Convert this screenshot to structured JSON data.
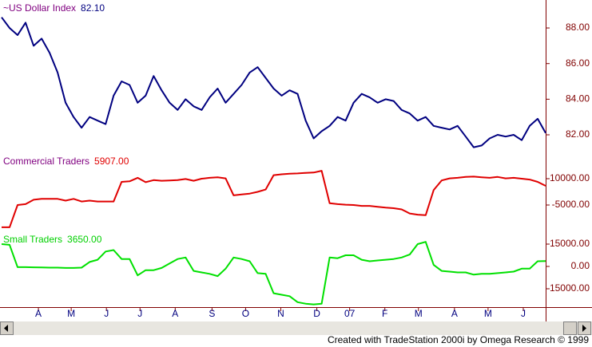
{
  "chart_data": [
    {
      "type": "line",
      "title": "~US Dollar Index",
      "value_label": "82.10",
      "title_color": "#800080",
      "value_color": "#000080",
      "x": [
        0,
        1,
        2,
        3,
        4,
        5,
        6,
        7,
        8,
        9,
        10,
        11,
        12,
        13,
        14,
        15,
        16,
        17,
        18,
        19,
        20,
        21,
        22,
        23,
        24,
        25,
        26,
        27,
        28,
        29,
        30,
        31,
        32,
        33,
        34,
        35,
        36,
        37,
        38,
        39,
        40,
        41,
        42,
        43,
        44,
        45,
        46,
        47,
        48,
        49,
        50,
        51,
        52,
        53,
        54,
        55,
        56,
        57,
        58,
        59,
        60,
        61,
        62,
        63,
        64,
        65,
        66,
        67,
        68
      ],
      "xlim": [
        0,
        68
      ],
      "ylim": [
        81.06,
        89.57
      ],
      "yticks": [
        {
          "value": 82,
          "label": "82.00"
        },
        {
          "value": 84,
          "label": "84.00"
        },
        {
          "value": 86,
          "label": "86.00"
        },
        {
          "value": 88,
          "label": "88.00"
        }
      ],
      "series": [
        {
          "name": "~US Dollar Index",
          "color": "#000080",
          "values": [
            88.6,
            88.0,
            87.6,
            88.3,
            87.0,
            87.4,
            86.6,
            85.5,
            83.8,
            83.0,
            82.4,
            83.0,
            82.8,
            82.6,
            84.2,
            85.0,
            84.8,
            83.8,
            84.2,
            85.3,
            84.5,
            83.8,
            83.4,
            84.0,
            83.6,
            83.4,
            84.1,
            84.6,
            83.8,
            84.3,
            84.8,
            85.5,
            85.8,
            85.2,
            84.6,
            84.2,
            84.5,
            84.3,
            82.8,
            81.8,
            82.2,
            82.5,
            83.0,
            82.8,
            83.8,
            84.3,
            84.1,
            83.8,
            84.0,
            83.9,
            83.4,
            83.2,
            82.8,
            83.0,
            82.5,
            82.4,
            82.3,
            82.5,
            81.9,
            81.3,
            81.4,
            81.8,
            82.0,
            81.9,
            82.0,
            81.7,
            82.5,
            82.9,
            82.1
          ]
        }
      ]
    },
    {
      "type": "line",
      "title": "Commercial Traders",
      "value_label": "5907.00",
      "title_color": "#800080",
      "value_color": "#e00000",
      "x": [
        0,
        1,
        2,
        3,
        4,
        5,
        6,
        7,
        8,
        9,
        10,
        11,
        12,
        13,
        14,
        15,
        16,
        17,
        18,
        19,
        20,
        21,
        22,
        23,
        24,
        25,
        26,
        27,
        28,
        29,
        30,
        31,
        32,
        33,
        34,
        35,
        36,
        37,
        38,
        39,
        40,
        41,
        42,
        43,
        44,
        45,
        46,
        47,
        48,
        49,
        50,
        51,
        52,
        53,
        54,
        55,
        56,
        57,
        58,
        59,
        60,
        61,
        62,
        63,
        64,
        65,
        66,
        67,
        68
      ],
      "xlim": [
        0,
        68
      ],
      "ylim": [
        -19090,
        24545
      ],
      "yticks": [
        {
          "value": -5000,
          "label": "-5000.00"
        },
        {
          "value": 10000,
          "label": "10000.00"
        }
      ],
      "series": [
        {
          "name": "Commercial Traders",
          "color": "#e00000",
          "values": [
            -17700,
            -17700,
            -5000,
            -4500,
            -2000,
            -1500,
            -1500,
            -1500,
            -2500,
            -1500,
            -3000,
            -2500,
            -3000,
            -3000,
            -3000,
            8200,
            8500,
            10500,
            8000,
            9200,
            8800,
            9000,
            9200,
            9800,
            8800,
            10000,
            10500,
            10800,
            10200,
            500,
            1000,
            1500,
            2500,
            3800,
            12000,
            12500,
            12800,
            13000,
            13300,
            13500,
            14500,
            -4000,
            -4500,
            -4800,
            -5000,
            -5500,
            -5500,
            -6000,
            -6500,
            -6800,
            -7500,
            -9800,
            -10500,
            -10800,
            3500,
            9000,
            10200,
            10500,
            11000,
            11200,
            10800,
            10500,
            11000,
            10200,
            10500,
            10000,
            9500,
            8200,
            5907
          ]
        }
      ]
    },
    {
      "type": "line",
      "title": "Small Traders",
      "value_label": "3650.00",
      "title_color": "#00d000",
      "value_color": "#00d000",
      "x": [
        0,
        1,
        2,
        3,
        4,
        5,
        6,
        7,
        8,
        9,
        10,
        11,
        12,
        13,
        14,
        15,
        16,
        17,
        18,
        19,
        20,
        21,
        22,
        23,
        24,
        25,
        26,
        27,
        28,
        29,
        30,
        31,
        32,
        33,
        34,
        35,
        36,
        37,
        38,
        39,
        40,
        41,
        42,
        43,
        44,
        45,
        46,
        47,
        48,
        49,
        50,
        51,
        52,
        53,
        54,
        55,
        56,
        57,
        58,
        59,
        60,
        61,
        62,
        63,
        64,
        65,
        66,
        67,
        68
      ],
      "xlim": [
        0,
        68
      ],
      "ylim": [
        -27320,
        23570
      ],
      "yticks": [
        {
          "value": -15000,
          "label": "-15000.00"
        },
        {
          "value": 0,
          "label": "0.00"
        },
        {
          "value": 15000,
          "label": "15000.00"
        }
      ],
      "xticks": [
        {
          "value": 4.6,
          "label": "A"
        },
        {
          "value": 8.7,
          "label": "M"
        },
        {
          "value": 13.1,
          "label": "J"
        },
        {
          "value": 17.3,
          "label": "J"
        },
        {
          "value": 21.7,
          "label": "A"
        },
        {
          "value": 26.3,
          "label": "S"
        },
        {
          "value": 30.5,
          "label": "O"
        },
        {
          "value": 34.9,
          "label": "N"
        },
        {
          "value": 39.4,
          "label": "D"
        },
        {
          "value": 43.5,
          "label": "07"
        },
        {
          "value": 47.9,
          "label": "F"
        },
        {
          "value": 52.1,
          "label": "M"
        },
        {
          "value": 56.6,
          "label": "A"
        },
        {
          "value": 60.8,
          "label": "M"
        },
        {
          "value": 65.2,
          "label": "J"
        }
      ],
      "series": [
        {
          "name": "Small Traders",
          "color": "#00e000",
          "values": [
            15000,
            14500,
            -500,
            -500,
            -600,
            -700,
            -800,
            -800,
            -1000,
            -1000,
            -800,
            3000,
            4500,
            10000,
            11000,
            5000,
            5000,
            -6000,
            -2500,
            -2500,
            -1000,
            2000,
            5000,
            6000,
            -3000,
            -4000,
            -5000,
            -6500,
            -1500,
            6000,
            5000,
            3500,
            -4500,
            -5000,
            -18000,
            -19000,
            -20000,
            -24000,
            -25000,
            -25500,
            -25000,
            6000,
            5500,
            7500,
            7500,
            4500,
            3500,
            4000,
            4500,
            5000,
            6000,
            8000,
            15000,
            16500,
            1000,
            -3000,
            -3500,
            -4000,
            -4000,
            -5500,
            -5000,
            -5000,
            -4500,
            -4000,
            -3500,
            -1500,
            -1500,
            3500,
            3650
          ]
        }
      ]
    }
  ],
  "footer": "Created with TradeStation 2000i by Omega Research © 1999"
}
